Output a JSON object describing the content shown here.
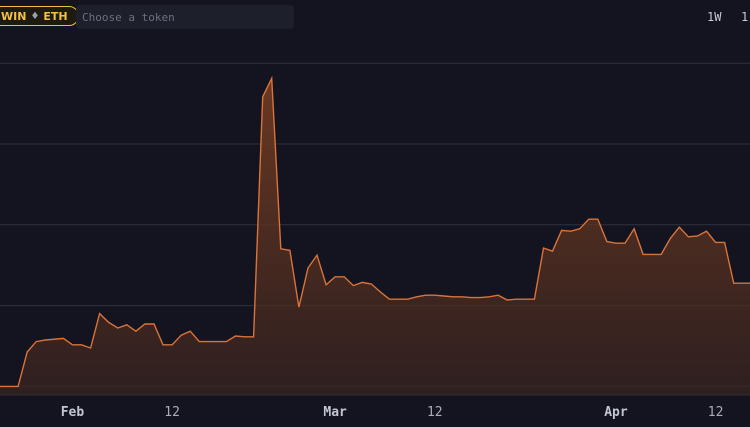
{
  "pair": {
    "base_label": "WIN",
    "eth_icon": "eth-diamond-icon",
    "quote_label": "ETH",
    "accent": "#f0c040"
  },
  "search": {
    "placeholder": "Choose a token",
    "value": ""
  },
  "ranges": [
    "1W",
    "1"
  ],
  "chart_data": {
    "type": "area",
    "line_color": "#d9733a",
    "fill_color": "#7a3f22",
    "grid": true,
    "x_tick_labels": [
      "Feb",
      "12",
      "Mar",
      "12",
      "Apr",
      "12"
    ],
    "x_ticks_month": [
      true,
      false,
      true,
      false,
      true,
      false
    ],
    "x_tick_days": [
      31,
      42,
      60,
      71,
      91,
      102
    ],
    "x_start_day": 23,
    "x_end_day": 105.8,
    "series": [
      {
        "values": [
          [
            23,
            0.12
          ],
          [
            25,
            0.12
          ],
          [
            26,
            0.55
          ],
          [
            27,
            0.68
          ],
          [
            28,
            0.7
          ],
          [
            30,
            0.72
          ],
          [
            31,
            0.64
          ],
          [
            32,
            0.64
          ],
          [
            33,
            0.6
          ],
          [
            34,
            1.03
          ],
          [
            35,
            0.92
          ],
          [
            36,
            0.85
          ],
          [
            37,
            0.89
          ],
          [
            38,
            0.81
          ],
          [
            39,
            0.9
          ],
          [
            40,
            0.9
          ],
          [
            41,
            0.64
          ],
          [
            42,
            0.64
          ],
          [
            43,
            0.76
          ],
          [
            44,
            0.81
          ],
          [
            45,
            0.68
          ],
          [
            46,
            0.68
          ],
          [
            48,
            0.68
          ],
          [
            49,
            0.75
          ],
          [
            50,
            0.74
          ],
          [
            51,
            0.74
          ],
          [
            52,
            3.74
          ],
          [
            53,
            3.97
          ],
          [
            54,
            1.84
          ],
          [
            55,
            1.82
          ],
          [
            56,
            1.11
          ],
          [
            57,
            1.6
          ],
          [
            58,
            1.76
          ],
          [
            59,
            1.39
          ],
          [
            60,
            1.49
          ],
          [
            61,
            1.49
          ],
          [
            62,
            1.38
          ],
          [
            63,
            1.42
          ],
          [
            64,
            1.4
          ],
          [
            65,
            1.3
          ],
          [
            66,
            1.21
          ],
          [
            68,
            1.21
          ],
          [
            69,
            1.24
          ],
          [
            70,
            1.26
          ],
          [
            71,
            1.26
          ],
          [
            72,
            1.25
          ],
          [
            73,
            1.24
          ],
          [
            74,
            1.24
          ],
          [
            75,
            1.23
          ],
          [
            76,
            1.23
          ],
          [
            77,
            1.24
          ],
          [
            78,
            1.26
          ],
          [
            79,
            1.2
          ],
          [
            80,
            1.21
          ],
          [
            82,
            1.21
          ],
          [
            83,
            1.85
          ],
          [
            84,
            1.81
          ],
          [
            85,
            2.07
          ],
          [
            86,
            2.06
          ],
          [
            87,
            2.09
          ],
          [
            88,
            2.21
          ],
          [
            89,
            2.21
          ],
          [
            90,
            1.93
          ],
          [
            91,
            1.91
          ],
          [
            92,
            1.91
          ],
          [
            93,
            2.09
          ],
          [
            94,
            1.77
          ],
          [
            96,
            1.77
          ],
          [
            97,
            1.97
          ],
          [
            98,
            2.11
          ],
          [
            99,
            1.99
          ],
          [
            100,
            2.0
          ],
          [
            101,
            2.06
          ],
          [
            102,
            1.92
          ],
          [
            103,
            1.92
          ],
          [
            104,
            1.41
          ],
          [
            105.8,
            1.41
          ]
        ]
      }
    ],
    "ylim": [
      0,
      4.2
    ],
    "y_gridlines": [
      0.12,
      1.13,
      2.14,
      3.15,
      4.16
    ]
  }
}
